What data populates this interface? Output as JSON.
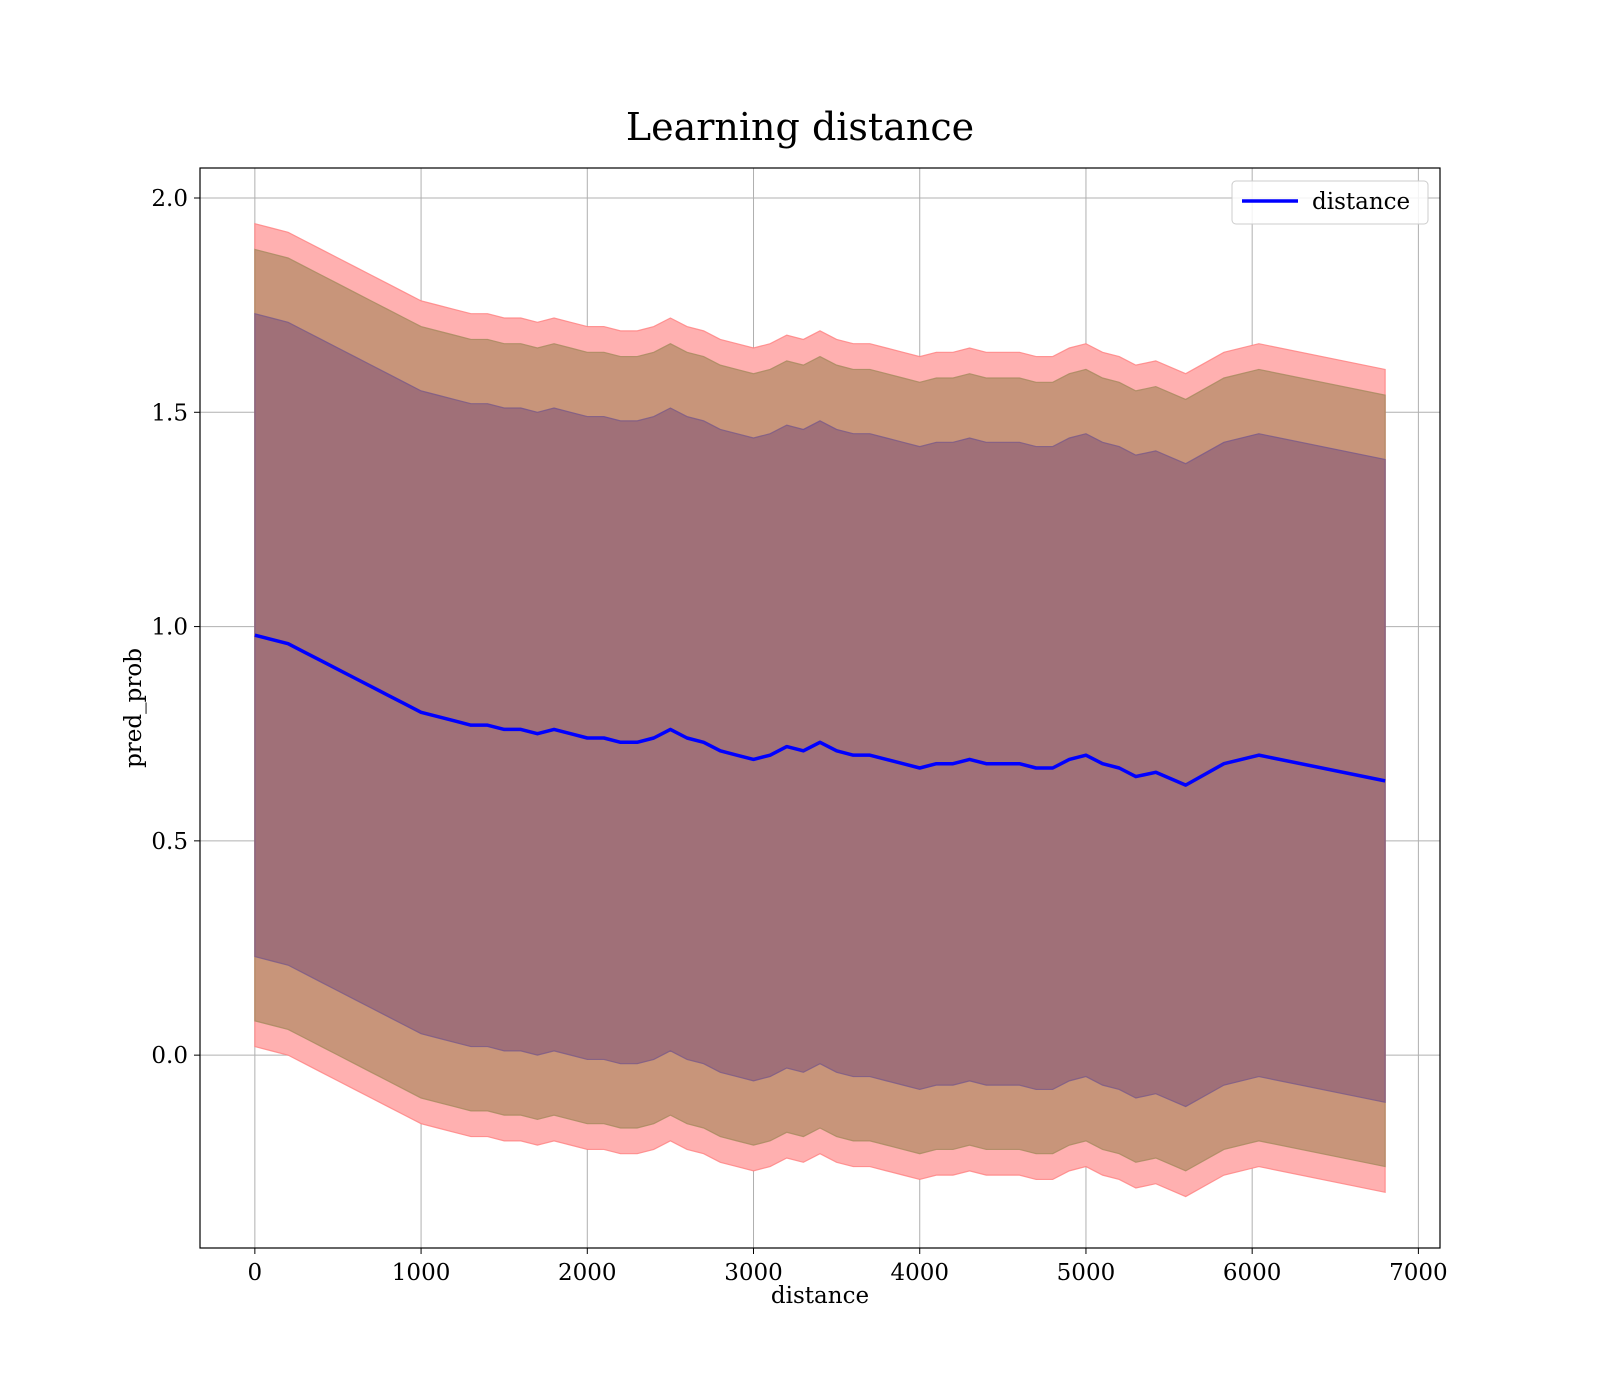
{
  "chart_data": {
    "type": "area",
    "title": "Learning distance",
    "xlabel": "distance",
    "ylabel": "pred_prob",
    "xlim": [
      -330,
      7130
    ],
    "ylim": [
      -0.45,
      2.07
    ],
    "xticks": [
      0,
      1000,
      2000,
      3000,
      4000,
      5000,
      6000,
      7000
    ],
    "yticks": [
      0.0,
      0.5,
      1.0,
      1.5,
      2.0
    ],
    "grid": true,
    "legend": {
      "position": "top-right",
      "entries": [
        "distance"
      ]
    },
    "colors": {
      "line": "#0000ff",
      "band_outer": "#ffb0b0",
      "band_outer_edge": "#ff8080",
      "band_middle": "#c8957a",
      "band_middle_edge": "#a68a5e",
      "band_inner": "#a07078",
      "band_inner_edge": "#7a5a88"
    },
    "x": [
      0,
      100,
      200,
      300,
      400,
      500,
      600,
      700,
      800,
      900,
      1000,
      1100,
      1200,
      1300,
      1400,
      1500,
      1600,
      1700,
      1800,
      1900,
      2000,
      2100,
      2200,
      2300,
      2400,
      2500,
      2600,
      2700,
      2800,
      2900,
      3000,
      3100,
      3200,
      3300,
      3400,
      3500,
      3600,
      3700,
      3800,
      3900,
      4000,
      4100,
      4200,
      4300,
      4400,
      4500,
      4600,
      4700,
      4800,
      4900,
      5000,
      5100,
      5200,
      5300,
      5420,
      5600,
      5830,
      6040,
      6800
    ],
    "series": [
      {
        "name": "distance",
        "values": [
          0.98,
          0.97,
          0.96,
          0.94,
          0.92,
          0.9,
          0.88,
          0.86,
          0.84,
          0.82,
          0.8,
          0.79,
          0.78,
          0.77,
          0.77,
          0.76,
          0.76,
          0.75,
          0.76,
          0.75,
          0.74,
          0.74,
          0.73,
          0.73,
          0.74,
          0.76,
          0.74,
          0.73,
          0.71,
          0.7,
          0.69,
          0.7,
          0.72,
          0.71,
          0.73,
          0.71,
          0.7,
          0.7,
          0.69,
          0.68,
          0.67,
          0.68,
          0.68,
          0.69,
          0.68,
          0.68,
          0.68,
          0.67,
          0.67,
          0.69,
          0.7,
          0.68,
          0.67,
          0.65,
          0.66,
          0.63,
          0.68,
          0.7,
          0.64
        ]
      }
    ],
    "bands": [
      {
        "level": "outer",
        "half_width": [
          0.96,
          0.96,
          0.96,
          0.96,
          0.96,
          0.96,
          0.96,
          0.96,
          0.96,
          0.96,
          0.96,
          0.96,
          0.96,
          0.96,
          0.96,
          0.96,
          0.96,
          0.96,
          0.96,
          0.96,
          0.96,
          0.96,
          0.96,
          0.96,
          0.96,
          0.96,
          0.96,
          0.96,
          0.96,
          0.96,
          0.96,
          0.96,
          0.96,
          0.96,
          0.96,
          0.96,
          0.96,
          0.96,
          0.96,
          0.96,
          0.96,
          0.96,
          0.96,
          0.96,
          0.96,
          0.96,
          0.96,
          0.96,
          0.96,
          0.96,
          0.96,
          0.96,
          0.96,
          0.96,
          0.96,
          0.96,
          0.96,
          0.96,
          0.96
        ]
      },
      {
        "level": "middle",
        "half_width": [
          0.9,
          0.9,
          0.9,
          0.9,
          0.9,
          0.9,
          0.9,
          0.9,
          0.9,
          0.9,
          0.9,
          0.9,
          0.9,
          0.9,
          0.9,
          0.9,
          0.9,
          0.9,
          0.9,
          0.9,
          0.9,
          0.9,
          0.9,
          0.9,
          0.9,
          0.9,
          0.9,
          0.9,
          0.9,
          0.9,
          0.9,
          0.9,
          0.9,
          0.9,
          0.9,
          0.9,
          0.9,
          0.9,
          0.9,
          0.9,
          0.9,
          0.9,
          0.9,
          0.9,
          0.9,
          0.9,
          0.9,
          0.9,
          0.9,
          0.9,
          0.9,
          0.9,
          0.9,
          0.9,
          0.9,
          0.9,
          0.9,
          0.9,
          0.9
        ]
      },
      {
        "level": "inner",
        "half_width": [
          0.75,
          0.75,
          0.75,
          0.75,
          0.75,
          0.75,
          0.75,
          0.75,
          0.75,
          0.75,
          0.75,
          0.75,
          0.75,
          0.75,
          0.75,
          0.75,
          0.75,
          0.75,
          0.75,
          0.75,
          0.75,
          0.75,
          0.75,
          0.75,
          0.75,
          0.75,
          0.75,
          0.75,
          0.75,
          0.75,
          0.75,
          0.75,
          0.75,
          0.75,
          0.75,
          0.75,
          0.75,
          0.75,
          0.75,
          0.75,
          0.75,
          0.75,
          0.75,
          0.75,
          0.75,
          0.75,
          0.75,
          0.75,
          0.75,
          0.75,
          0.75,
          0.75,
          0.75,
          0.75,
          0.75,
          0.75,
          0.75,
          0.75,
          0.75
        ]
      }
    ]
  }
}
